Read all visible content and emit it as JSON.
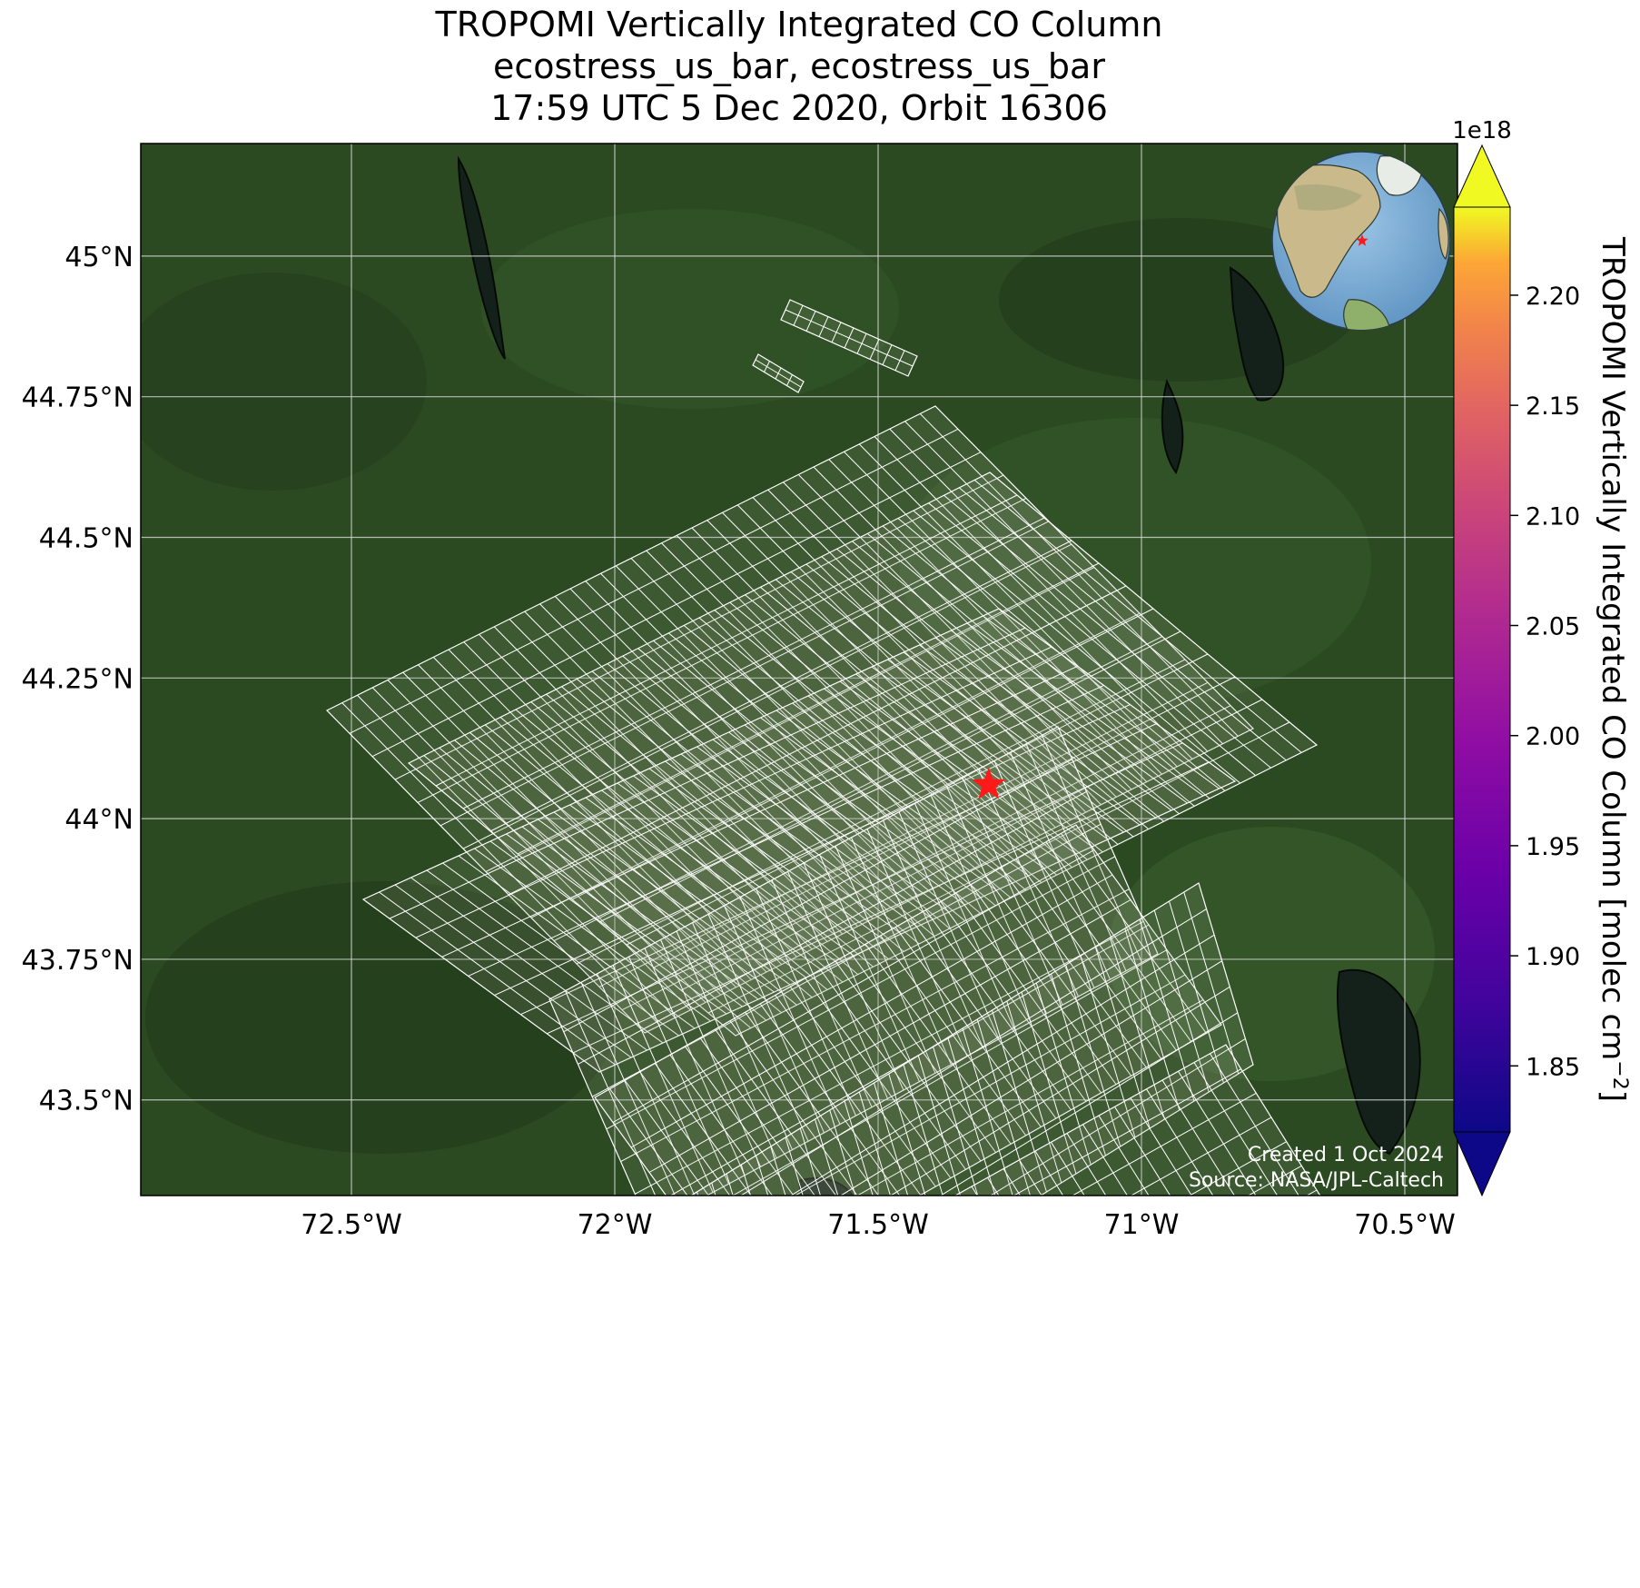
{
  "title": {
    "line1": "TROPOMI Vertically Integrated CO Column",
    "line2": "ecostress_us_bar, ecostress_us_bar",
    "line3": "17:59 UTC 5 Dec 2020, Orbit 16306"
  },
  "map": {
    "lon_range": [
      -72.9,
      -70.4
    ],
    "lat_range": [
      43.33,
      45.2
    ],
    "lon_ticks": [
      {
        "value": -72.5,
        "label": "72.5°W"
      },
      {
        "value": -72.0,
        "label": "72°W"
      },
      {
        "value": -71.5,
        "label": "71.5°W"
      },
      {
        "value": -71.0,
        "label": "71°W"
      },
      {
        "value": -70.5,
        "label": "70.5°W"
      }
    ],
    "lat_ticks": [
      {
        "value": 45.0,
        "label": "45°N"
      },
      {
        "value": 44.75,
        "label": "44.75°N"
      },
      {
        "value": 44.5,
        "label": "44.5°N"
      },
      {
        "value": 44.25,
        "label": "44.25°N"
      },
      {
        "value": 44.0,
        "label": "44°N"
      },
      {
        "value": 43.75,
        "label": "43.75°N"
      },
      {
        "value": 43.5,
        "label": "43.5°N"
      }
    ],
    "grid": true,
    "target_marker": {
      "lon": -71.29,
      "lat": 44.06,
      "color": "#ff1a1a",
      "icon": "star-icon"
    },
    "footprint_color": "#ffffff",
    "basemap_color": "#2b4a22"
  },
  "colorbar": {
    "label": "TROPOMI Vertically Integrated CO Column [molec cm",
    "label_sup": "−2",
    "label_end": "]",
    "exponent": "1e18",
    "range": [
      1.82,
      2.24
    ],
    "ticks": [
      "1.85",
      "1.90",
      "1.95",
      "2.00",
      "2.05",
      "2.10",
      "2.15",
      "2.20"
    ],
    "tick_values": [
      1.85,
      1.9,
      1.95,
      2.0,
      2.05,
      2.1,
      2.15,
      2.2
    ],
    "colormap": "plasma",
    "extend": "both"
  },
  "inset_globe": {
    "marker_color": "#ff1a1a",
    "icon": "globe-icon"
  },
  "credits": {
    "created": "Created 1 Oct 2024",
    "source": "Source: NASA/JPL-Caltech"
  }
}
